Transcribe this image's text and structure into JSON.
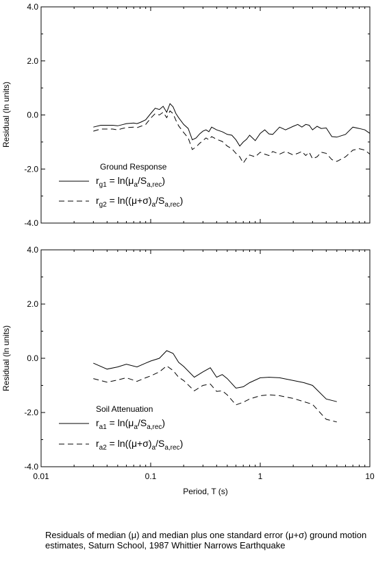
{
  "caption": "Residuals of median (μ) and median plus one standard error (μ+σ) ground motion estimates, Saturn School, 1987 Whittier Narrows Earthquake",
  "chart_data": [
    {
      "type": "line",
      "title": "Ground Response",
      "xlabel": "",
      "ylabel": "Residual (ln units)",
      "x_scale": "log",
      "xlim": [
        0.01,
        10
      ],
      "ylim": [
        -4,
        4
      ],
      "yticks": [
        "4.0",
        "2.0",
        "0.0",
        "-2.0",
        "-4.0"
      ],
      "legend_placement": "lower-left",
      "series": [
        {
          "name": "rg1 = ln(μa/Sa,rec)",
          "label_main": "r",
          "label_sub": "g1",
          "label_eq": " = ln(μ",
          "label_sub2": "a",
          "label_mid": "/S",
          "label_sub3": "a,rec",
          "label_end": ")",
          "style": "solid",
          "x": [
            0.03,
            0.035,
            0.04,
            0.045,
            0.05,
            0.055,
            0.06,
            0.07,
            0.075,
            0.08,
            0.09,
            0.1,
            0.11,
            0.12,
            0.13,
            0.14,
            0.15,
            0.16,
            0.17,
            0.18,
            0.2,
            0.22,
            0.24,
            0.26,
            0.28,
            0.3,
            0.32,
            0.34,
            0.36,
            0.4,
            0.45,
            0.5,
            0.55,
            0.6,
            0.65,
            0.7,
            0.75,
            0.8,
            0.9,
            1.0,
            1.1,
            1.2,
            1.3,
            1.5,
            1.7,
            2.0,
            2.2,
            2.4,
            2.6,
            2.8,
            3.0,
            3.3,
            3.6,
            4.0,
            4.5,
            5.0,
            6.0,
            7.0,
            8.0,
            9.0,
            10.0
          ],
          "y": [
            -0.45,
            -0.38,
            -0.38,
            -0.38,
            -0.4,
            -0.36,
            -0.32,
            -0.3,
            -0.32,
            -0.28,
            -0.18,
            0.05,
            0.25,
            0.2,
            0.32,
            0.1,
            0.42,
            0.3,
            0.05,
            -0.1,
            -0.35,
            -0.5,
            -0.92,
            -0.85,
            -0.7,
            -0.6,
            -0.55,
            -0.62,
            -0.45,
            -0.55,
            -0.62,
            -0.72,
            -0.75,
            -0.92,
            -1.15,
            -1.0,
            -0.9,
            -0.75,
            -0.95,
            -0.68,
            -0.55,
            -0.7,
            -0.72,
            -0.45,
            -0.55,
            -0.42,
            -0.35,
            -0.45,
            -0.35,
            -0.38,
            -0.55,
            -0.42,
            -0.5,
            -0.48,
            -0.8,
            -0.82,
            -0.72,
            -0.45,
            -0.5,
            -0.55,
            -0.68
          ]
        },
        {
          "name": "rg2 = ln((μ+σ)a/Sa,rec)",
          "label_main": "r",
          "label_sub": "g2",
          "label_eq": " = ln((μ+σ)",
          "label_sub2": "a",
          "label_mid": "/S",
          "label_sub3": "a,rec",
          "label_end": ")",
          "style": "dashed",
          "x": [
            0.03,
            0.035,
            0.04,
            0.045,
            0.05,
            0.055,
            0.06,
            0.07,
            0.075,
            0.08,
            0.09,
            0.1,
            0.11,
            0.12,
            0.13,
            0.14,
            0.15,
            0.16,
            0.17,
            0.18,
            0.2,
            0.22,
            0.24,
            0.26,
            0.28,
            0.3,
            0.32,
            0.34,
            0.36,
            0.4,
            0.45,
            0.5,
            0.55,
            0.6,
            0.65,
            0.7,
            0.75,
            0.8,
            0.9,
            1.0,
            1.1,
            1.2,
            1.3,
            1.5,
            1.7,
            2.0,
            2.2,
            2.4,
            2.6,
            2.8,
            3.0,
            3.3,
            3.6,
            4.0,
            4.5,
            5.0,
            6.0,
            7.0,
            8.0,
            9.0,
            10.0
          ],
          "y": [
            -0.6,
            -0.52,
            -0.52,
            -0.52,
            -0.55,
            -0.5,
            -0.47,
            -0.45,
            -0.47,
            -0.43,
            -0.35,
            -0.12,
            0.05,
            0.0,
            0.1,
            -0.1,
            0.15,
            0.05,
            -0.2,
            -0.4,
            -0.65,
            -0.85,
            -1.28,
            -1.18,
            -1.05,
            -0.95,
            -0.85,
            -0.92,
            -0.8,
            -0.9,
            -0.98,
            -1.15,
            -1.25,
            -1.42,
            -1.55,
            -1.78,
            -1.6,
            -1.48,
            -1.55,
            -1.38,
            -1.45,
            -1.5,
            -1.35,
            -1.45,
            -1.35,
            -1.48,
            -1.42,
            -1.35,
            -1.5,
            -1.38,
            -1.62,
            -1.55,
            -1.38,
            -1.42,
            -1.65,
            -1.72,
            -1.55,
            -1.3,
            -1.25,
            -1.3,
            -1.45
          ]
        }
      ]
    },
    {
      "type": "line",
      "title": "Soil Attenuation",
      "xlabel": "Period, T (s)",
      "ylabel": "Residual (ln units)",
      "x_scale": "log",
      "xlim": [
        0.01,
        10
      ],
      "ylim": [
        -4,
        4
      ],
      "yticks": [
        "4.0",
        "2.0",
        "0.0",
        "-2.0",
        "-4.0"
      ],
      "xticks": [
        "0.01",
        "0.1",
        "1",
        "10"
      ],
      "legend_placement": "lower-left",
      "series": [
        {
          "name": "ra1 = ln(μa/Sa,rec)",
          "label_main": "r",
          "label_sub": "a1",
          "label_eq": " = ln(μ",
          "label_sub2": "a",
          "label_mid": "/S",
          "label_sub3": "a,rec",
          "label_end": ")",
          "style": "solid",
          "x": [
            0.03,
            0.04,
            0.05,
            0.06,
            0.075,
            0.09,
            0.1,
            0.12,
            0.14,
            0.16,
            0.18,
            0.2,
            0.25,
            0.3,
            0.35,
            0.4,
            0.45,
            0.5,
            0.6,
            0.7,
            0.8,
            1.0,
            1.2,
            1.5,
            2.0,
            2.5,
            3.0,
            4.0,
            5.0
          ],
          "y": [
            -0.18,
            -0.4,
            -0.32,
            -0.22,
            -0.32,
            -0.18,
            -0.1,
            0.0,
            0.28,
            0.18,
            -0.15,
            -0.3,
            -0.7,
            -0.5,
            -0.35,
            -0.7,
            -0.6,
            -0.75,
            -1.1,
            -1.05,
            -0.9,
            -0.72,
            -0.7,
            -0.72,
            -0.82,
            -0.9,
            -1.0,
            -1.5,
            -1.6
          ]
        },
        {
          "name": "ra2 = ln((μ+σ)a/Sa,rec)",
          "label_main": "r",
          "label_sub": "a2",
          "label_eq": " = ln((μ+σ)",
          "label_sub2": "a",
          "label_mid": "/S",
          "label_sub3": "a,rec",
          "label_end": ")",
          "style": "dashed",
          "x": [
            0.03,
            0.04,
            0.05,
            0.06,
            0.075,
            0.09,
            0.1,
            0.12,
            0.14,
            0.16,
            0.18,
            0.2,
            0.25,
            0.3,
            0.35,
            0.4,
            0.45,
            0.5,
            0.6,
            0.7,
            0.8,
            1.0,
            1.2,
            1.5,
            2.0,
            2.5,
            3.0,
            4.0,
            5.0
          ],
          "y": [
            -0.75,
            -0.88,
            -0.8,
            -0.72,
            -0.85,
            -0.72,
            -0.65,
            -0.5,
            -0.28,
            -0.45,
            -0.7,
            -0.82,
            -1.2,
            -1.0,
            -0.95,
            -1.22,
            -1.2,
            -1.35,
            -1.72,
            -1.62,
            -1.5,
            -1.38,
            -1.35,
            -1.38,
            -1.48,
            -1.6,
            -1.7,
            -2.25,
            -2.35
          ]
        }
      ]
    }
  ]
}
